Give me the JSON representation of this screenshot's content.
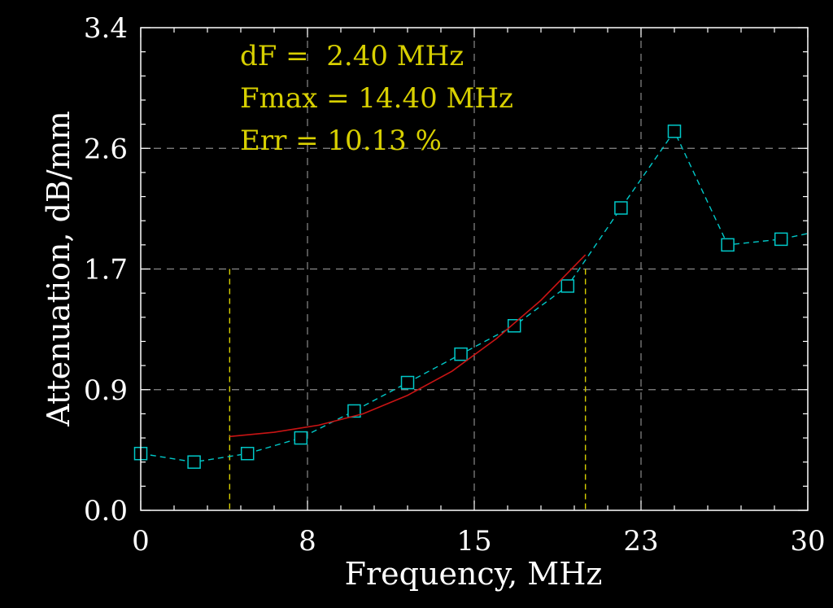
{
  "chart_data": {
    "type": "line",
    "xlabel": "Frequency, MHz",
    "ylabel": "Attenuation, dB/mm",
    "xlim": [
      0,
      30
    ],
    "ylim": [
      0,
      3.4
    ],
    "x_ticks": [
      0,
      7.5,
      15,
      22.5,
      30
    ],
    "x_tick_labels": [
      "0",
      "8",
      "15",
      "23",
      "30"
    ],
    "y_ticks": [
      0,
      0.85,
      1.7,
      2.55,
      3.4
    ],
    "y_tick_labels": [
      "0.0",
      "0.9",
      "1.7",
      "2.6",
      "3.4"
    ],
    "grid": true,
    "annotations": [
      "dF =  2.40 MHz",
      "Fmax = 14.40 MHz",
      "Err = 10.13 %"
    ],
    "vlines": [
      4.0,
      20.0
    ],
    "series": [
      {
        "name": "",
        "style": "dashed-with-square-markers",
        "color": "#00c8c8",
        "x": [
          0.0,
          2.4,
          4.8,
          7.2,
          9.6,
          12.0,
          14.4,
          16.8,
          19.2,
          21.6,
          24.0,
          26.4,
          28.8,
          30.0
        ],
        "y": [
          0.4,
          0.34,
          0.4,
          0.51,
          0.7,
          0.9,
          1.1,
          1.3,
          1.58,
          2.13,
          2.67,
          1.87,
          1.91,
          1.95
        ]
      },
      {
        "name": "",
        "style": "solid",
        "color": "#c81414",
        "x": [
          4.0,
          6.0,
          8.0,
          10.0,
          12.0,
          14.0,
          16.0,
          18.0,
          20.0
        ],
        "y": [
          0.52,
          0.55,
          0.6,
          0.68,
          0.81,
          0.98,
          1.21,
          1.48,
          1.8
        ]
      }
    ]
  },
  "colors": {
    "axis": "#ffffff",
    "grid": "#8a8a8a",
    "annotation": "#d8d000",
    "vline": "#d8d000"
  }
}
